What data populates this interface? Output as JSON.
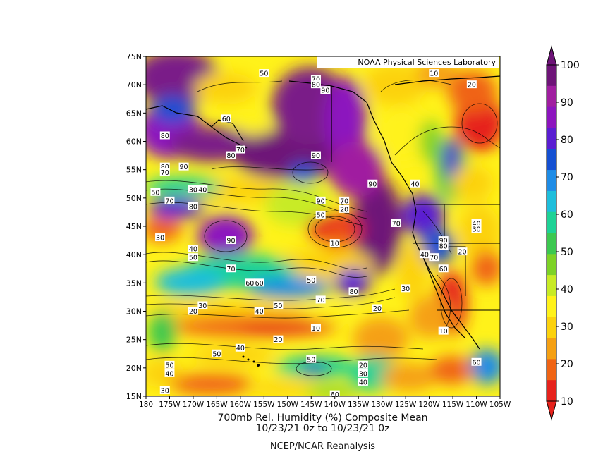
{
  "chart_data": {
    "type": "heatmap",
    "title": "700mb Rel. Humidity (%)   Composite Mean",
    "subtitle": "10/23/21 0z  to 10/23/21 0z",
    "source_note": "NCEP/NCAR Reanalysis",
    "credit": "NOAA Physical Sciences Laboratory",
    "x_ticks": [
      "180",
      "175W",
      "170W",
      "165W",
      "160W",
      "155W",
      "150W",
      "145W",
      "140W",
      "135W",
      "130W",
      "125W",
      "120W",
      "115W",
      "110W",
      "105W"
    ],
    "y_ticks": [
      "75N",
      "70N",
      "65N",
      "60N",
      "55N",
      "50N",
      "45N",
      "40N",
      "35N",
      "30N",
      "25N",
      "20N",
      "15N"
    ],
    "xlim": [
      -180,
      -105
    ],
    "ylim": [
      15,
      75
    ],
    "colorbar": {
      "ticks": [
        "100",
        "90",
        "80",
        "70",
        "60",
        "50",
        "40",
        "30",
        "20",
        "10"
      ],
      "range": [
        10,
        100
      ],
      "colors": [
        "#e6221c",
        "#f06414",
        "#f5a013",
        "#fcd20d",
        "#fff21a",
        "#c8eb25",
        "#7dd226",
        "#3cc850",
        "#1ed296",
        "#1ebedc",
        "#1e8ce6",
        "#1450d2",
        "#5a1ed2",
        "#8c14be",
        "#a01ea0",
        "#6e1478"
      ]
    },
    "contour_labels": [
      {
        "text": "50",
        "lon": -155,
        "lat": 72
      },
      {
        "text": "70",
        "lon": -144,
        "lat": 71
      },
      {
        "text": "80",
        "lon": -144,
        "lat": 70
      },
      {
        "text": "90",
        "lon": -142,
        "lat": 69
      },
      {
        "text": "10",
        "lon": -119,
        "lat": 72
      },
      {
        "text": "20",
        "lon": -111,
        "lat": 70
      },
      {
        "text": "60",
        "lon": -163,
        "lat": 64
      },
      {
        "text": "80",
        "lon": -176,
        "lat": 61
      },
      {
        "text": "70",
        "lon": -160,
        "lat": 58.5
      },
      {
        "text": "80",
        "lon": -162,
        "lat": 57.5
      },
      {
        "text": "90",
        "lon": -144,
        "lat": 57.5
      },
      {
        "text": "80",
        "lon": -176,
        "lat": 55.5
      },
      {
        "text": "70",
        "lon": -176,
        "lat": 54.5
      },
      {
        "text": "90",
        "lon": -172,
        "lat": 55.5
      },
      {
        "text": "90",
        "lon": -132,
        "lat": 52.5
      },
      {
        "text": "40",
        "lon": -123,
        "lat": 52.5
      },
      {
        "text": "50",
        "lon": -178,
        "lat": 51
      },
      {
        "text": "30",
        "lon": -170,
        "lat": 51.5
      },
      {
        "text": "40",
        "lon": -168,
        "lat": 51.5
      },
      {
        "text": "70",
        "lon": -175,
        "lat": 49.5
      },
      {
        "text": "80",
        "lon": -170,
        "lat": 48.5
      },
      {
        "text": "90",
        "lon": -143,
        "lat": 49.5
      },
      {
        "text": "70",
        "lon": -138,
        "lat": 49.5
      },
      {
        "text": "20",
        "lon": -138,
        "lat": 48
      },
      {
        "text": "50",
        "lon": -143,
        "lat": 47
      },
      {
        "text": "70",
        "lon": -127,
        "lat": 45.5
      },
      {
        "text": "30",
        "lon": -177,
        "lat": 43
      },
      {
        "text": "90",
        "lon": -162,
        "lat": 42.5
      },
      {
        "text": "10",
        "lon": -140,
        "lat": 42
      },
      {
        "text": "90",
        "lon": -117,
        "lat": 42.5
      },
      {
        "text": "80",
        "lon": -117,
        "lat": 41.5
      },
      {
        "text": "40",
        "lon": -121,
        "lat": 40
      },
      {
        "text": "70",
        "lon": -119,
        "lat": 39.5
      },
      {
        "text": "40",
        "lon": -170,
        "lat": 41
      },
      {
        "text": "50",
        "lon": -170,
        "lat": 39.5
      },
      {
        "text": "20",
        "lon": -113,
        "lat": 40.5
      },
      {
        "text": "40",
        "lon": -110,
        "lat": 45.5
      },
      {
        "text": "30",
        "lon": -110,
        "lat": 44.5
      },
      {
        "text": "70",
        "lon": -162,
        "lat": 37.5
      },
      {
        "text": "60",
        "lon": -117,
        "lat": 37.5
      },
      {
        "text": "60",
        "lon": -158,
        "lat": 35
      },
      {
        "text": "60",
        "lon": -156,
        "lat": 35
      },
      {
        "text": "50",
        "lon": -145,
        "lat": 35.5
      },
      {
        "text": "80",
        "lon": -136,
        "lat": 33.5
      },
      {
        "text": "30",
        "lon": -125,
        "lat": 34
      },
      {
        "text": "70",
        "lon": -143,
        "lat": 32
      },
      {
        "text": "30",
        "lon": -168,
        "lat": 31
      },
      {
        "text": "20",
        "lon": -170,
        "lat": 30
      },
      {
        "text": "40",
        "lon": -156,
        "lat": 30
      },
      {
        "text": "50",
        "lon": -152,
        "lat": 31
      },
      {
        "text": "20",
        "lon": -131,
        "lat": 30.5
      },
      {
        "text": "10",
        "lon": -144,
        "lat": 27
      },
      {
        "text": "10",
        "lon": -117,
        "lat": 26.5
      },
      {
        "text": "20",
        "lon": -152,
        "lat": 25
      },
      {
        "text": "40",
        "lon": -160,
        "lat": 23.5
      },
      {
        "text": "50",
        "lon": -165,
        "lat": 22.5
      },
      {
        "text": "50",
        "lon": -145,
        "lat": 21.5
      },
      {
        "text": "60",
        "lon": -110,
        "lat": 21
      },
      {
        "text": "50",
        "lon": -175,
        "lat": 20.5
      },
      {
        "text": "40",
        "lon": -175,
        "lat": 19
      },
      {
        "text": "20",
        "lon": -134,
        "lat": 20.5
      },
      {
        "text": "30",
        "lon": -134,
        "lat": 19
      },
      {
        "text": "40",
        "lon": -134,
        "lat": 17.5
      },
      {
        "text": "30",
        "lon": -176,
        "lat": 16
      },
      {
        "text": "60",
        "lon": -140,
        "lat": 15.3
      }
    ]
  }
}
